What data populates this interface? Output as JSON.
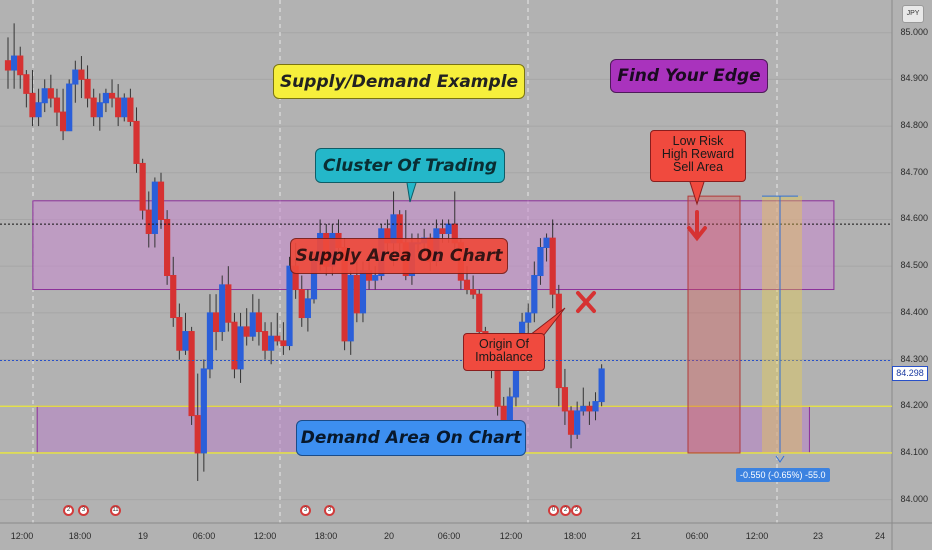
{
  "chart_data": {
    "type": "candlestick",
    "instrument_badge": "JPY",
    "y_axis": {
      "range": [
        83.95,
        85.07
      ],
      "ticks": [
        "85.000",
        "84.900",
        "84.800",
        "84.700",
        "84.600",
        "84.500",
        "84.400",
        "84.300",
        "84.200",
        "84.100",
        "84.000"
      ]
    },
    "x_axis": {
      "ticks": [
        "12:00",
        "18:00",
        "19",
        "06:00",
        "12:00",
        "18:00",
        "20",
        "06:00",
        "12:00",
        "18:00",
        "21",
        "06:00",
        "12:00",
        "23",
        "24"
      ]
    },
    "current_price": "84.298",
    "candles": [
      [
        84.94,
        84.99,
        84.88,
        84.92
      ],
      [
        84.92,
        85.02,
        84.88,
        84.95
      ],
      [
        84.95,
        84.97,
        84.88,
        84.91
      ],
      [
        84.91,
        84.92,
        84.84,
        84.87
      ],
      [
        84.87,
        84.92,
        84.8,
        84.82
      ],
      [
        84.82,
        84.88,
        84.8,
        84.85
      ],
      [
        84.85,
        84.9,
        84.83,
        84.88
      ],
      [
        84.88,
        84.91,
        84.84,
        84.86
      ],
      [
        84.86,
        84.88,
        84.8,
        84.83
      ],
      [
        84.83,
        84.88,
        84.77,
        84.79
      ],
      [
        84.79,
        84.9,
        84.79,
        84.89
      ],
      [
        84.89,
        84.94,
        84.85,
        84.92
      ],
      [
        84.92,
        84.95,
        84.86,
        84.9
      ],
      [
        84.9,
        84.93,
        84.84,
        84.86
      ],
      [
        84.86,
        84.88,
        84.8,
        84.82
      ],
      [
        84.82,
        84.87,
        84.79,
        84.85
      ],
      [
        84.85,
        84.88,
        84.83,
        84.87
      ],
      [
        84.87,
        84.9,
        84.84,
        84.86
      ],
      [
        84.86,
        84.89,
        84.8,
        84.82
      ],
      [
        84.82,
        84.87,
        84.81,
        84.86
      ],
      [
        84.86,
        84.88,
        84.8,
        84.81
      ],
      [
        84.81,
        84.84,
        84.7,
        84.72
      ],
      [
        84.72,
        84.73,
        84.6,
        84.62
      ],
      [
        84.62,
        84.66,
        84.54,
        84.57
      ],
      [
        84.57,
        84.69,
        84.54,
        84.68
      ],
      [
        84.68,
        84.7,
        84.58,
        84.6
      ],
      [
        84.6,
        84.62,
        84.46,
        84.48
      ],
      [
        84.48,
        84.52,
        84.37,
        84.39
      ],
      [
        84.39,
        84.42,
        84.3,
        84.32
      ],
      [
        84.32,
        84.4,
        84.31,
        84.36
      ],
      [
        84.36,
        84.37,
        84.16,
        84.18
      ],
      [
        84.18,
        84.27,
        84.04,
        84.1
      ],
      [
        84.1,
        84.3,
        84.06,
        84.28
      ],
      [
        84.28,
        84.44,
        84.26,
        84.4
      ],
      [
        84.4,
        84.44,
        84.32,
        84.36
      ],
      [
        84.36,
        84.48,
        84.34,
        84.46
      ],
      [
        84.46,
        84.5,
        84.36,
        84.38
      ],
      [
        84.38,
        84.4,
        84.26,
        84.28
      ],
      [
        84.28,
        84.4,
        84.25,
        84.37
      ],
      [
        84.37,
        84.41,
        84.33,
        84.35
      ],
      [
        84.35,
        84.44,
        84.34,
        84.4
      ],
      [
        84.4,
        84.43,
        84.33,
        84.36
      ],
      [
        84.36,
        84.38,
        84.3,
        84.32
      ],
      [
        84.32,
        84.38,
        84.29,
        84.35
      ],
      [
        84.35,
        84.4,
        84.33,
        84.34
      ],
      [
        84.34,
        84.38,
        84.31,
        84.33
      ],
      [
        84.33,
        84.52,
        84.32,
        84.5
      ],
      [
        84.5,
        84.55,
        84.43,
        84.45
      ],
      [
        84.45,
        84.48,
        84.37,
        84.39
      ],
      [
        84.39,
        84.45,
        84.36,
        84.43
      ],
      [
        84.43,
        84.53,
        84.42,
        84.51
      ],
      [
        84.51,
        84.6,
        84.49,
        84.57
      ],
      [
        84.57,
        84.59,
        84.48,
        84.5
      ],
      [
        84.5,
        84.59,
        84.48,
        84.57
      ],
      [
        84.57,
        84.6,
        84.52,
        84.54
      ],
      [
        84.54,
        84.56,
        84.32,
        84.34
      ],
      [
        84.34,
        84.49,
        84.31,
        84.48
      ],
      [
        84.48,
        84.51,
        84.38,
        84.4
      ],
      [
        84.4,
        84.51,
        84.38,
        84.49
      ],
      [
        84.49,
        84.51,
        84.45,
        84.47
      ],
      [
        84.47,
        84.5,
        84.45,
        84.48
      ],
      [
        84.48,
        84.59,
        84.47,
        84.58
      ],
      [
        84.58,
        84.6,
        84.53,
        84.55
      ],
      [
        84.55,
        84.66,
        84.5,
        84.61
      ],
      [
        84.61,
        84.62,
        84.53,
        84.55
      ],
      [
        84.55,
        84.62,
        84.47,
        84.48
      ],
      [
        84.48,
        84.57,
        84.46,
        84.55
      ],
      [
        84.55,
        84.57,
        84.53,
        84.55
      ],
      [
        84.55,
        84.58,
        84.53,
        84.56
      ],
      [
        84.56,
        84.57,
        84.49,
        84.51
      ],
      [
        84.51,
        84.6,
        84.5,
        84.58
      ],
      [
        84.58,
        84.6,
        84.55,
        84.57
      ],
      [
        84.57,
        84.6,
        84.55,
        84.59
      ],
      [
        84.59,
        84.66,
        84.53,
        84.55
      ],
      [
        84.55,
        84.56,
        84.45,
        84.47
      ],
      [
        84.47,
        84.5,
        84.44,
        84.45
      ],
      [
        84.45,
        84.48,
        84.43,
        84.44
      ],
      [
        84.44,
        84.45,
        84.34,
        84.36
      ],
      [
        84.36,
        84.37,
        84.3,
        84.32
      ],
      [
        84.32,
        84.33,
        84.26,
        84.28
      ],
      [
        84.28,
        84.29,
        84.18,
        84.2
      ],
      [
        84.2,
        84.22,
        84.11,
        84.13
      ],
      [
        84.13,
        84.24,
        84.11,
        84.22
      ],
      [
        84.22,
        84.3,
        84.2,
        84.29
      ],
      [
        84.29,
        84.4,
        84.28,
        84.38
      ],
      [
        84.38,
        84.42,
        84.34,
        84.4
      ],
      [
        84.4,
        84.51,
        84.38,
        84.48
      ],
      [
        84.48,
        84.56,
        84.46,
        84.54
      ],
      [
        84.54,
        84.57,
        84.51,
        84.56
      ],
      [
        84.56,
        84.6,
        84.41,
        84.44
      ],
      [
        84.44,
        84.46,
        84.2,
        84.24
      ],
      [
        84.24,
        84.28,
        84.16,
        84.19
      ],
      [
        84.19,
        84.2,
        84.11,
        84.14
      ],
      [
        84.14,
        84.21,
        84.13,
        84.19
      ],
      [
        84.19,
        84.24,
        84.18,
        84.2
      ],
      [
        84.2,
        84.21,
        84.16,
        84.19
      ],
      [
        84.19,
        84.23,
        84.17,
        84.21
      ],
      [
        84.21,
        84.29,
        84.2,
        84.28
      ]
    ],
    "zones": [
      {
        "name": "supply",
        "from_candle": 0.8,
        "to_candle": 116,
        "top": 84.64,
        "bottom": 84.45
      },
      {
        "name": "demand",
        "from_candle": 1.5,
        "to_candle": 112,
        "top": 84.2,
        "bottom": 84.1
      }
    ],
    "annotations": {
      "title_box": "Supply/Demand Example",
      "edge_box": "Find Your Edge",
      "cluster_box": "Cluster Of Trading",
      "supply_label": "Supply Area On Chart",
      "demand_label": "Demand Area On Chart",
      "origin_note": "Origin Of\nImbalance",
      "sell_note": "Low Risk\nHigh Reward\nSell Area",
      "measure_label": "-0.550 (-0.65%) -55.0"
    },
    "event_badges": [
      "2",
      "3",
      "11",
      "3",
      "3",
      "0",
      "2",
      "2"
    ],
    "colors": {
      "up": "#2b5fd9",
      "down": "#d63232",
      "background": "#b2b2b2",
      "supply_zone": "#c98ad0",
      "demand_zone": "#b882c8"
    }
  }
}
